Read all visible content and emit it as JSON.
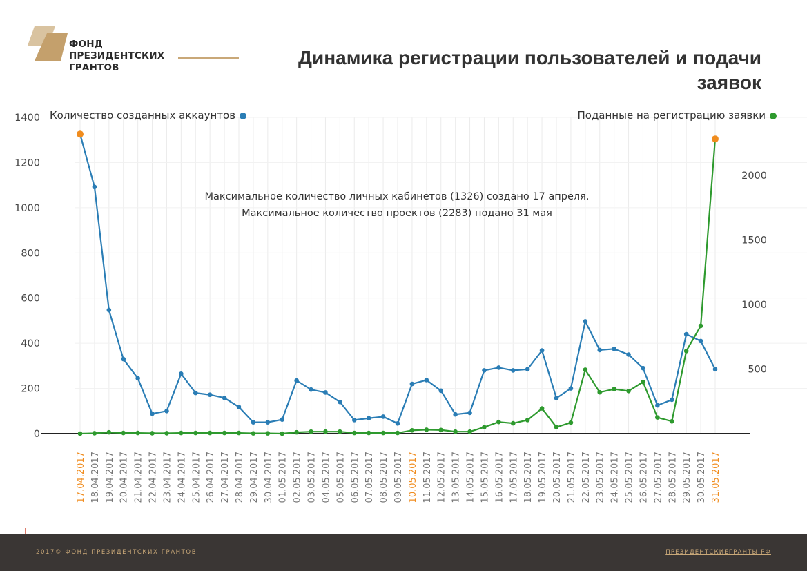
{
  "header": {
    "logo_lines": [
      "ФОНД",
      "ПРЕЗИДЕНТСКИХ",
      "ГРАНТОВ"
    ],
    "title": "Динамика регистрации пользователей и подачи заявок"
  },
  "footer": {
    "copyright": "2017© ФОНД ПРЕЗИДЕНТСКИХ ГРАНТОВ",
    "site": "ПРЕЗИДЕНТСКИЕГРАНТЫ.РФ"
  },
  "colors": {
    "accounts": "#2a7db5",
    "applications": "#2e9a2e",
    "highlight": "#f08c1e",
    "brand": "#c9a878",
    "footer_bg": "#3a3634"
  },
  "chart_data": {
    "type": "line",
    "annotation": [
      "Максимальное количество личных кабинетов (1326) создано 17 апреля.",
      "Максимальное количество проектов (2283) подано 31 мая"
    ],
    "x": [
      "17.04.2017",
      "18.04.2017",
      "19.04.2017",
      "20.04.2017",
      "21.04.2017",
      "22.04.2017",
      "23.04.2017",
      "24.04.2017",
      "25.04.2017",
      "26.04.2017",
      "27.04.2017",
      "28.04.2017",
      "29.04.2017",
      "30.04.2017",
      "01.05.2017",
      "02.05.2017",
      "03.05.2017",
      "04.05.2017",
      "05.05.2017",
      "06.05.2017",
      "07.05.2017",
      "08.05.2017",
      "09.05.2017",
      "10.05.2017",
      "11.05.2017",
      "12.05.2017",
      "13.05.2017",
      "14.05.2017",
      "15.05.2017",
      "16.05.2017",
      "17.05.2017",
      "18.05.2017",
      "19.05.2017",
      "20.05.2017",
      "21.05.2017",
      "22.05.2017",
      "23.05.2017",
      "24.05.2017",
      "25.05.2017",
      "26.05.2017",
      "27.05.2017",
      "28.05.2017",
      "29.05.2017",
      "30.05.2017",
      "31.05.2017"
    ],
    "highlighted_x": [
      "17.04.2017",
      "10.05.2017",
      "31.05.2017"
    ],
    "series": [
      {
        "name": "Количество созданных аккаунтов",
        "axis": "left",
        "values": [
          1326,
          1092,
          547,
          330,
          245,
          88,
          100,
          265,
          180,
          172,
          158,
          118,
          50,
          50,
          62,
          235,
          195,
          182,
          140,
          60,
          68,
          75,
          45,
          220,
          237,
          190,
          85,
          92,
          280,
          292,
          280,
          285,
          368,
          157,
          200,
          497,
          370,
          375,
          350,
          290,
          125,
          150,
          440,
          410,
          285
        ],
        "max_point": {
          "x": "17.04.2017",
          "value": 1326
        }
      },
      {
        "name": "Поданные на регистрацию заявки",
        "axis": "right",
        "values": [
          0,
          3,
          10,
          5,
          5,
          3,
          3,
          5,
          5,
          5,
          5,
          5,
          2,
          2,
          0,
          10,
          15,
          15,
          15,
          5,
          5,
          5,
          5,
          25,
          30,
          28,
          15,
          15,
          50,
          90,
          80,
          105,
          195,
          50,
          85,
          495,
          320,
          345,
          330,
          400,
          125,
          95,
          640,
          835,
          2283
        ],
        "max_point": {
          "x": "31.05.2017",
          "value": 2283
        }
      }
    ],
    "y_left": {
      "min": 0,
      "max": 1400,
      "ticks": [
        0,
        200,
        400,
        600,
        800,
        1000,
        1200,
        1400
      ]
    },
    "y_right": {
      "min": 0,
      "max": 2450,
      "ticks": [
        500,
        1000,
        1500,
        2000
      ]
    },
    "grid": "vertical"
  }
}
